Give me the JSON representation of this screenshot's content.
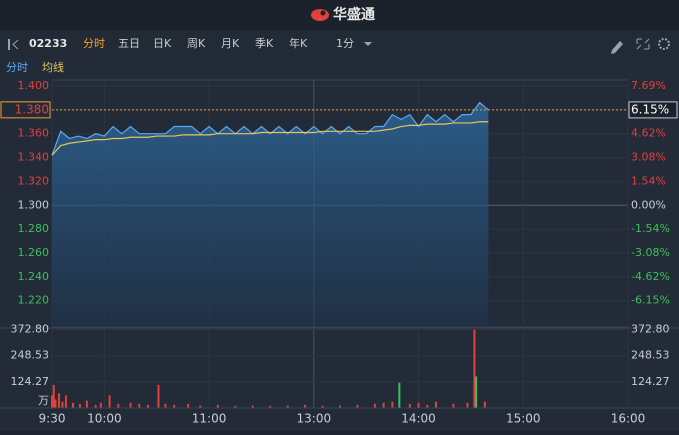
{
  "header": {
    "logo": "华盛通"
  },
  "toolbar": {
    "code": "02233",
    "tabs": [
      "分时",
      "五日",
      "日K",
      "周K",
      "月K",
      "季K",
      "年K"
    ],
    "active_tab": 0,
    "interval": "1分"
  },
  "chart_data": [
    {
      "type": "line",
      "x": [
        0,
        5,
        10,
        15,
        20,
        25,
        30,
        35,
        40,
        45,
        50,
        55,
        60,
        65,
        70,
        75,
        80,
        85,
        90,
        95,
        100,
        105,
        110,
        115,
        120,
        125,
        130,
        135,
        140,
        145,
        150,
        155,
        160,
        165,
        170,
        175,
        180,
        185,
        190,
        195,
        200,
        205,
        210,
        215,
        220,
        225,
        230,
        235,
        240,
        245,
        250
      ],
      "series": [
        {
          "name": "分时",
          "color": "#5aa9f0",
          "values": [
            1.342,
            1.362,
            1.356,
            1.358,
            1.356,
            1.36,
            1.358,
            1.366,
            1.36,
            1.366,
            1.36,
            1.36,
            1.36,
            1.36,
            1.366,
            1.366,
            1.366,
            1.36,
            1.366,
            1.36,
            1.366,
            1.36,
            1.366,
            1.36,
            1.366,
            1.36,
            1.366,
            1.36,
            1.366,
            1.36,
            1.366,
            1.36,
            1.366,
            1.36,
            1.366,
            1.36,
            1.36,
            1.366,
            1.366,
            1.376,
            1.372,
            1.376,
            1.366,
            1.376,
            1.37,
            1.376,
            1.37,
            1.376,
            1.376,
            1.386,
            1.38
          ]
        },
        {
          "name": "均线",
          "color": "#e8c65a",
          "values": [
            1.342,
            1.35,
            1.352,
            1.353,
            1.354,
            1.355,
            1.355,
            1.356,
            1.356,
            1.357,
            1.357,
            1.357,
            1.358,
            1.358,
            1.358,
            1.359,
            1.359,
            1.359,
            1.359,
            1.36,
            1.36,
            1.36,
            1.36,
            1.36,
            1.361,
            1.361,
            1.361,
            1.361,
            1.361,
            1.361,
            1.361,
            1.362,
            1.362,
            1.362,
            1.362,
            1.362,
            1.362,
            1.362,
            1.363,
            1.364,
            1.366,
            1.367,
            1.367,
            1.368,
            1.368,
            1.368,
            1.369,
            1.369,
            1.369,
            1.37,
            1.37
          ]
        }
      ],
      "xlim": [
        0,
        330
      ],
      "xticks": [
        {
          "value": 0,
          "label": "9:30"
        },
        {
          "value": 30,
          "label": "10:00"
        },
        {
          "value": 90,
          "label": "11:00"
        },
        {
          "value": 150,
          "label": "13:00"
        },
        {
          "value": 210,
          "label": "14:00"
        },
        {
          "value": 270,
          "label": "15:00"
        },
        {
          "value": 330,
          "label": "16:00"
        }
      ],
      "ylim": [
        1.198,
        1.405
      ],
      "yticks": [
        {
          "value": 1.4,
          "label": "1.400"
        },
        {
          "value": 1.38,
          "label": "1.380"
        },
        {
          "value": 1.36,
          "label": "1.360"
        },
        {
          "value": 1.34,
          "label": "1.340"
        },
        {
          "value": 1.32,
          "label": "1.320"
        },
        {
          "value": 1.3,
          "label": "1.300"
        },
        {
          "value": 1.28,
          "label": "1.280"
        },
        {
          "value": 1.26,
          "label": "1.260"
        },
        {
          "value": 1.24,
          "label": "1.240"
        },
        {
          "value": 1.22,
          "label": "1.220"
        }
      ],
      "y2lim": [
        -7.846,
        8.077
      ],
      "y2ticks": [
        {
          "value": 7.69,
          "label": "7.69%"
        },
        {
          "value": 6.15,
          "label": "6.15%"
        },
        {
          "value": 4.62,
          "label": "4.62%"
        },
        {
          "value": 3.08,
          "label": "3.08%"
        },
        {
          "value": 1.54,
          "label": "1.54%"
        },
        {
          "value": 0,
          "label": "0.00%"
        },
        {
          "value": -1.54,
          "label": "-1.54%"
        },
        {
          "value": -3.08,
          "label": "-3.08%"
        },
        {
          "value": -4.62,
          "label": "-4.62%"
        },
        {
          "value": -6.15,
          "label": "-6.15%"
        }
      ],
      "base": 1.3,
      "last_price": 1.38,
      "last_price_label": "1.380",
      "last_change": 6.15,
      "last_change_label": "6.15%",
      "grid": true
    },
    {
      "type": "bar",
      "x": [
        0,
        1,
        2,
        4,
        6,
        8,
        12,
        16,
        20,
        25,
        28,
        33,
        38,
        45,
        50,
        55,
        61,
        65,
        70,
        78,
        85,
        95,
        105,
        115,
        125,
        135,
        145,
        155,
        165,
        175,
        185,
        190,
        195,
        199,
        205,
        210,
        215,
        220,
        230,
        238,
        242,
        243,
        248
      ],
      "values": [
        60,
        110,
        40,
        70,
        30,
        60,
        25,
        20,
        35,
        15,
        25,
        60,
        20,
        25,
        20,
        15,
        110,
        20,
        15,
        20,
        12,
        15,
        10,
        12,
        10,
        12,
        15,
        10,
        12,
        15,
        20,
        25,
        30,
        120,
        20,
        25,
        15,
        30,
        20,
        25,
        372.8,
        150,
        30
      ],
      "colors": [
        "#e0413c",
        "#e0413c",
        "#e0413c",
        "#e0413c",
        "#e0413c",
        "#e0413c",
        "#e0413c",
        "#e0413c",
        "#e0413c",
        "#e0413c",
        "#e0413c",
        "#e0413c",
        "#e0413c",
        "#e0413c",
        "#e0413c",
        "#e0413c",
        "#e0413c",
        "#e0413c",
        "#e0413c",
        "#e0413c",
        "#e0413c",
        "#e0413c",
        "#e0413c",
        "#e0413c",
        "#e0413c",
        "#e0413c",
        "#e0413c",
        "#e0413c",
        "#e0413c",
        "#e0413c",
        "#e0413c",
        "#e0413c",
        "#e0413c",
        "#3fbf5a",
        "#e0413c",
        "#e0413c",
        "#e0413c",
        "#e0413c",
        "#e0413c",
        "#e0413c",
        "#e0413c",
        "#3fbf5a",
        "#e0413c"
      ],
      "ylim": [
        0,
        380
      ],
      "yticks": [
        {
          "value": 372.8,
          "label": "372.80"
        },
        {
          "value": 248.53,
          "label": "248.53"
        },
        {
          "value": 124.27,
          "label": "124.27"
        }
      ],
      "unit": "万"
    }
  ]
}
